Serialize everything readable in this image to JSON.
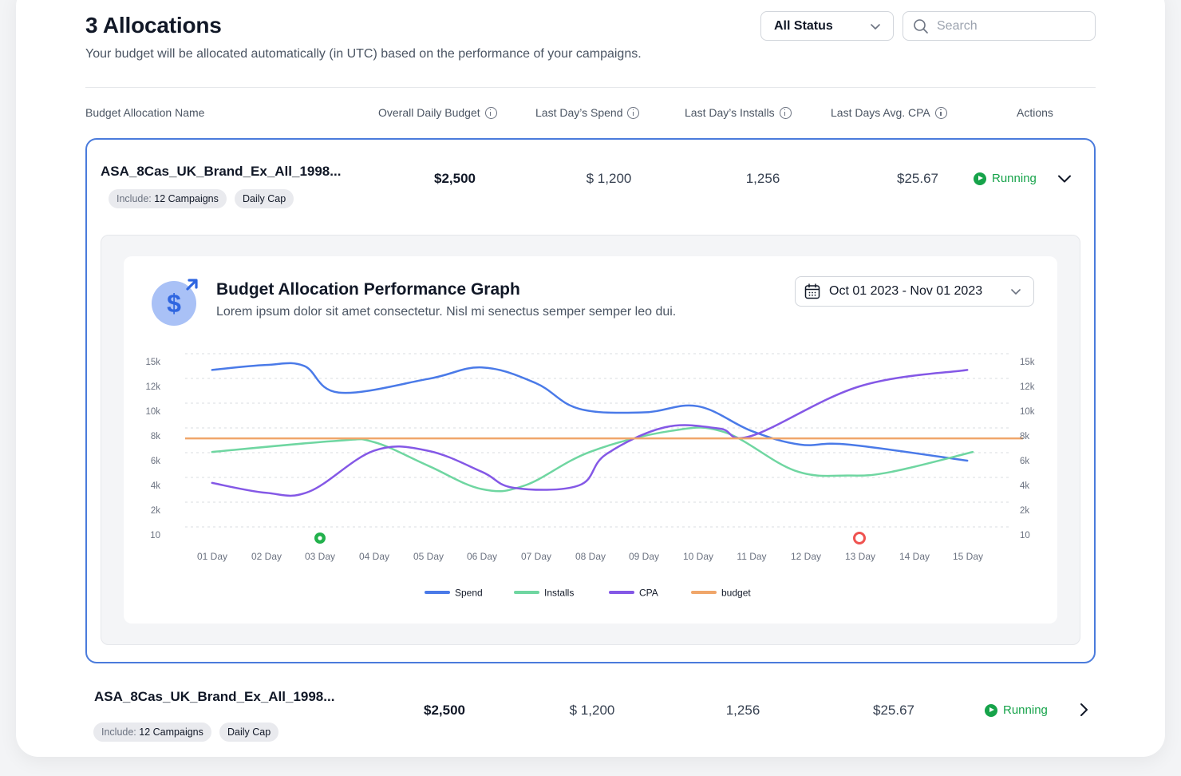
{
  "header": {
    "title": "3 Allocations",
    "subtitle": "Your budget will be allocated automatically (in UTC) based on the performance of your campaigns.",
    "status_filter": "All Status",
    "search_placeholder": "Search"
  },
  "table": {
    "columns": [
      "Budget Allocation Name",
      "Overall Daily Budget",
      "Last Day’s Spend",
      "Last Day’s Installs",
      "Last Days Avg. CPA",
      "Actions"
    ],
    "rows": [
      {
        "name": "ASA_8Cas_UK_Brand_Ex_All_1998...",
        "include_label": "Include:",
        "include_value": "12 Campaigns",
        "cap": "Daily Cap",
        "budget": "$2,500",
        "spend": "$ 1,200",
        "installs": "1,256",
        "cpa": "$25.67",
        "status": "Running",
        "expanded": true
      },
      {
        "name": "ASA_8Cas_UK_Brand_Ex_All_1998...",
        "include_label": "Include:",
        "include_value": "12 Campaigns",
        "cap": "Daily Cap",
        "budget": "$2,500",
        "spend": "$ 1,200",
        "installs": "1,256",
        "cpa": "$25.67",
        "status": "Running",
        "expanded": false
      }
    ]
  },
  "graph": {
    "title": "Budget Allocation Performance Graph",
    "description": "Lorem ipsum dolor sit amet consectetur. Nisl mi senectus semper semper leo dui.",
    "date_range": "Oct 01 2023 - Nov 01 2023",
    "icon": "dollar-growth-icon"
  },
  "chart_data": {
    "type": "line",
    "y_ticks": [
      "15k",
      "12k",
      "10k",
      "8k",
      "6k",
      "4k",
      "2k",
      "10"
    ],
    "y_ticks_right": [
      "15k",
      "12k",
      "10k",
      "8k",
      "6k",
      "4k",
      "2k",
      "10"
    ],
    "categories": [
      "01 Day",
      "02 Day",
      "03 Day",
      "04 Day",
      "05 Day",
      "06 Day",
      "07  Day",
      "08 Day",
      "09 Day",
      "10 Day",
      "11 Day",
      "12 Day",
      "13 Day",
      "14 Day",
      "15 Day"
    ],
    "x": [
      0.5,
      1.5,
      2.2,
      2.85,
      3.5,
      5.5,
      6.5,
      7.5,
      8.2,
      9.5,
      10,
      11,
      12,
      13,
      14,
      15
    ],
    "grid": "dotted-horizontal",
    "legend_position": "bottom",
    "series": [
      {
        "name": "Spend",
        "color": "#4a7ae8",
        "x": [
          0.5,
          1.5,
          2.2,
          2.85,
          4.5,
          5.5,
          6.5,
          7.3,
          8.5,
          9.5,
          10.5,
          11.4,
          12.3,
          14.5
        ],
        "y": [
          14000,
          14600,
          14500,
          11500,
          12900,
          14300,
          12400,
          10200,
          9900,
          10400,
          8400,
          7300,
          7300,
          6000
        ]
      },
      {
        "name": "Installs",
        "color": "#6fd6a1",
        "x": [
          0.5,
          2.8,
          3.5,
          4.5,
          5.5,
          6.3,
          7.5,
          9.0,
          10.0,
          11.3,
          12.3,
          13.1,
          14.6
        ],
        "y": [
          6700,
          7600,
          7500,
          5600,
          3700,
          4000,
          6700,
          8400,
          8300,
          5200,
          4800,
          5100,
          6700
        ]
      },
      {
        "name": "CPA",
        "color": "#8458e6",
        "x": [
          0.5,
          1.5,
          2.3,
          3.5,
          4.5,
          5.5,
          6.1,
          7.3,
          7.8,
          8.9,
          9.9,
          10.5,
          12.5,
          14.5
        ],
        "y": [
          4200,
          3400,
          3500,
          6800,
          6800,
          5100,
          3800,
          4000,
          6500,
          8700,
          8600,
          8000,
          12000,
          14000
        ]
      },
      {
        "name": "budget",
        "color": "#f0a66a",
        "x": [
          0.0,
          15.0
        ],
        "y": [
          7800,
          7800
        ]
      }
    ],
    "markers": [
      {
        "x": 2.5,
        "color": "#22b14c",
        "type": "filled"
      },
      {
        "x": 12.5,
        "color": "#ef5350",
        "type": "hollow"
      }
    ]
  }
}
